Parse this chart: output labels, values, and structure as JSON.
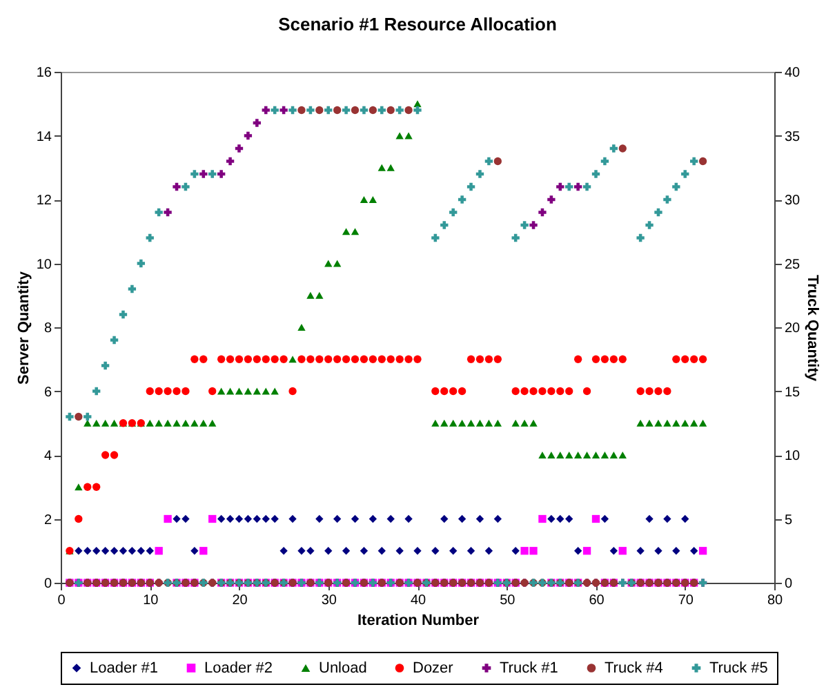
{
  "chart_data": {
    "type": "scatter",
    "title": "Scenario #1 Resource Allocation",
    "xlabel": "Iteration Number",
    "ylabel": "Server Quantity",
    "y2label": "Truck Quantity",
    "x": [
      1,
      2,
      3,
      4,
      5,
      6,
      7,
      8,
      9,
      10,
      11,
      12,
      13,
      14,
      15,
      16,
      17,
      18,
      19,
      20,
      21,
      22,
      23,
      24,
      25,
      26,
      27,
      28,
      29,
      30,
      31,
      32,
      33,
      34,
      35,
      36,
      37,
      38,
      39,
      40,
      41,
      42,
      43,
      44,
      45,
      46,
      47,
      48,
      49,
      50,
      51,
      52,
      53,
      54,
      55,
      56,
      57,
      58,
      59,
      60,
      61,
      62,
      63,
      64,
      65,
      66,
      67,
      68,
      69,
      70,
      71,
      72
    ],
    "xlim": [
      0,
      80
    ],
    "xticks": [
      0,
      10,
      20,
      30,
      40,
      50,
      60,
      70,
      80
    ],
    "ylim": [
      0,
      16
    ],
    "yticks": [
      0,
      2,
      4,
      6,
      8,
      10,
      12,
      14,
      16
    ],
    "y2lim": [
      0,
      40
    ],
    "y2ticks": [
      0,
      5,
      10,
      15,
      20,
      25,
      30,
      35,
      40
    ],
    "legend": "bottom",
    "series": [
      {
        "name": "Loader #1",
        "color": "#000080",
        "marker": "diamond",
        "values": [
          null,
          1,
          1,
          1,
          1,
          1,
          1,
          1,
          1,
          1,
          null,
          null,
          2,
          2,
          1,
          null,
          null,
          2,
          2,
          2,
          2,
          2,
          2,
          2,
          1,
          2,
          1,
          1,
          2,
          1,
          2,
          1,
          2,
          1,
          2,
          1,
          2,
          1,
          2,
          1,
          null,
          1,
          2,
          1,
          2,
          1,
          2,
          1,
          2,
          null,
          1,
          null,
          null,
          null,
          2,
          2,
          2,
          1,
          null,
          null,
          2,
          1,
          null,
          null,
          1,
          2,
          1,
          2,
          1,
          2,
          1,
          null
        ]
      },
      {
        "name": "Loader #2",
        "color": "#ff00ff",
        "marker": "square",
        "values": [
          0,
          0,
          0,
          0,
          0,
          0,
          0,
          0,
          0,
          0,
          1,
          2,
          0,
          0,
          0,
          1,
          2,
          0,
          0,
          0,
          0,
          0,
          0,
          0,
          0,
          0,
          0,
          0,
          0,
          0,
          0,
          0,
          0,
          0,
          0,
          0,
          0,
          0,
          0,
          0,
          0,
          0,
          0,
          0,
          0,
          0,
          0,
          0,
          0,
          0,
          0,
          1,
          1,
          2,
          0,
          0,
          0,
          0,
          1,
          2,
          0,
          0,
          1,
          0,
          0,
          0,
          0,
          0,
          0,
          0,
          0,
          1
        ]
      },
      {
        "name": "Unload",
        "color": "#008000",
        "marker": "triangle",
        "values": [
          1,
          3,
          5,
          5,
          5,
          5,
          5,
          5,
          5,
          5,
          5,
          5,
          5,
          5,
          5,
          5,
          5,
          6,
          6,
          6,
          6,
          6,
          6,
          6,
          null,
          7,
          8,
          9,
          9,
          10,
          10,
          11,
          11,
          12,
          12,
          13,
          13,
          14,
          14,
          15,
          null,
          5,
          5,
          5,
          5,
          5,
          5,
          5,
          5,
          null,
          5,
          5,
          5,
          4,
          4,
          4,
          4,
          4,
          4,
          4,
          4,
          4,
          4,
          null,
          5,
          5,
          5,
          5,
          5,
          5,
          5,
          5
        ]
      },
      {
        "name": "Dozer",
        "color": "#ff0000",
        "marker": "circle",
        "values": [
          1,
          2,
          3,
          3,
          4,
          4,
          5,
          5,
          5,
          6,
          6,
          6,
          6,
          6,
          7,
          7,
          6,
          7,
          7,
          7,
          7,
          7,
          7,
          7,
          7,
          6,
          7,
          7,
          7,
          7,
          7,
          7,
          7,
          7,
          7,
          7,
          7,
          7,
          7,
          7,
          null,
          6,
          6,
          6,
          6,
          7,
          7,
          7,
          7,
          null,
          6,
          6,
          6,
          6,
          6,
          6,
          6,
          7,
          6,
          7,
          7,
          7,
          7,
          null,
          6,
          6,
          6,
          6,
          7,
          7,
          7,
          7
        ]
      },
      {
        "name": "Truck #1",
        "color": "#800080",
        "marker": "cross",
        "axis": "y2",
        "values": [
          0,
          0,
          0,
          0,
          0,
          0,
          0,
          0,
          0,
          0,
          0,
          29,
          31,
          0,
          0,
          32,
          0,
          32,
          33,
          34,
          35,
          36,
          37,
          0,
          37,
          0,
          0,
          0,
          0,
          0,
          0,
          0,
          0,
          0,
          0,
          0,
          0,
          0,
          0,
          0,
          0,
          0,
          0,
          0,
          0,
          0,
          0,
          0,
          0,
          0,
          0,
          0,
          28,
          29,
          30,
          31,
          0,
          31,
          0,
          0,
          0,
          0,
          0,
          0,
          0,
          0,
          0,
          0,
          0,
          0,
          0,
          0
        ]
      },
      {
        "name": "Truck #4",
        "color": "#993333",
        "marker": "circle",
        "axis": "y2",
        "values": [
          0,
          13,
          0,
          0,
          0,
          0,
          0,
          0,
          0,
          0,
          0,
          0,
          0,
          0,
          0,
          0,
          0,
          0,
          0,
          0,
          0,
          0,
          0,
          0,
          0,
          0,
          37,
          0,
          37,
          0,
          37,
          0,
          37,
          0,
          37,
          0,
          37,
          0,
          37,
          0,
          0,
          0,
          0,
          0,
          0,
          0,
          0,
          0,
          33,
          0,
          0,
          0,
          0,
          0,
          0,
          0,
          0,
          0,
          0,
          0,
          0,
          0,
          34,
          0,
          0,
          0,
          0,
          0,
          0,
          0,
          0,
          33
        ]
      },
      {
        "name": "Truck #5",
        "color": "#339999",
        "marker": "cross",
        "axis": "y2",
        "values": [
          13,
          0,
          13,
          15,
          17,
          19,
          21,
          23,
          25,
          27,
          29,
          0,
          0,
          31,
          32,
          0,
          32,
          0,
          0,
          0,
          0,
          0,
          0,
          37,
          0,
          37,
          0,
          37,
          0,
          37,
          0,
          37,
          0,
          37,
          0,
          37,
          0,
          37,
          0,
          37,
          0,
          27,
          28,
          29,
          30,
          31,
          32,
          33,
          0,
          0,
          27,
          28,
          0,
          0,
          0,
          0,
          31,
          0,
          31,
          32,
          33,
          34,
          0,
          0,
          27,
          28,
          29,
          30,
          31,
          32,
          33,
          0
        ]
      }
    ]
  }
}
